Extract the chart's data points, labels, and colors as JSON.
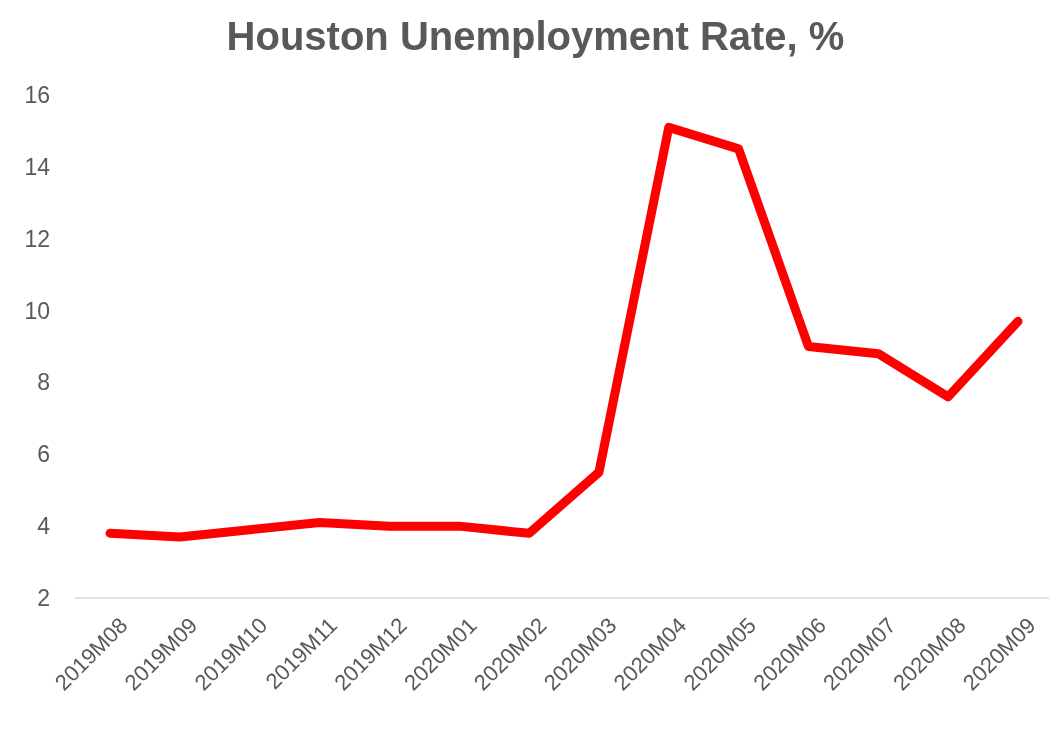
{
  "chart_data": {
    "type": "line",
    "title": "Houston Unemployment Rate, %",
    "categories": [
      "2019M08",
      "2019M09",
      "2019M10",
      "2019M11",
      "2019M12",
      "2020M01",
      "2020M02",
      "2020M03",
      "2020M04",
      "2020M05",
      "2020M06",
      "2020M07",
      "2020M08",
      "2020M09"
    ],
    "series": [
      {
        "color": "#ff0000",
        "values": [
          3.8,
          3.7,
          3.9,
          4.1,
          4.0,
          4.0,
          3.8,
          5.5,
          15.1,
          14.5,
          9.0,
          8.8,
          7.6,
          9.7
        ]
      }
    ],
    "ylim": [
      2,
      16
    ],
    "yticks": [
      2,
      4,
      6,
      8,
      10,
      12,
      14,
      16
    ],
    "grid": false,
    "marker": "none",
    "line_style": "solid"
  }
}
